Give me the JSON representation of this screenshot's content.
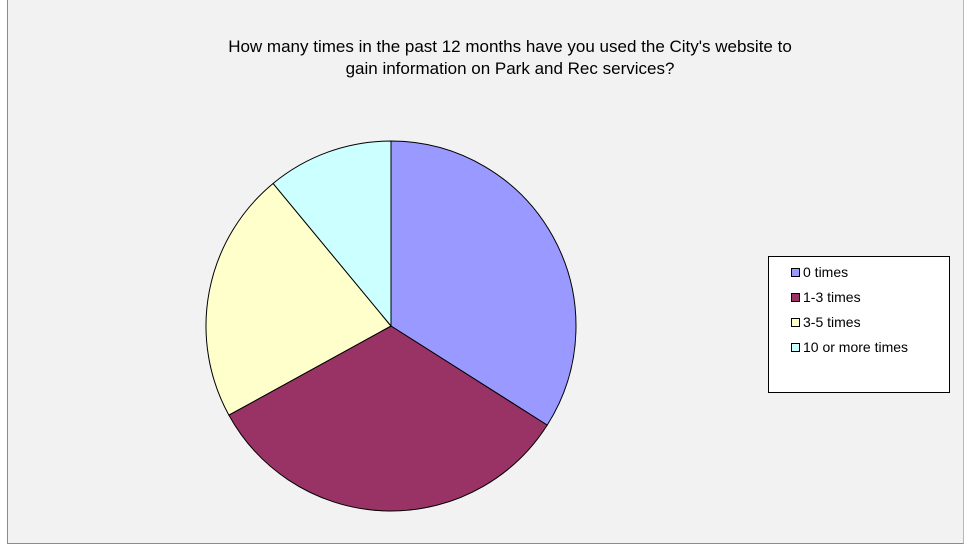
{
  "chart_data": {
    "type": "pie",
    "title_lines": [
      "How many times in the past 12 months have you used the City's website to",
      "gain information on Park and Rec services?"
    ],
    "categories": [
      "0 times",
      "1-3 times",
      "3-5 times",
      "10 or more times"
    ],
    "values": [
      34,
      33,
      22,
      11
    ],
    "colors": [
      "#9999ff",
      "#993366",
      "#ffffcc",
      "#ccffff"
    ],
    "start": "12 o'clock",
    "direction": "clockwise",
    "legend_position": "right"
  }
}
